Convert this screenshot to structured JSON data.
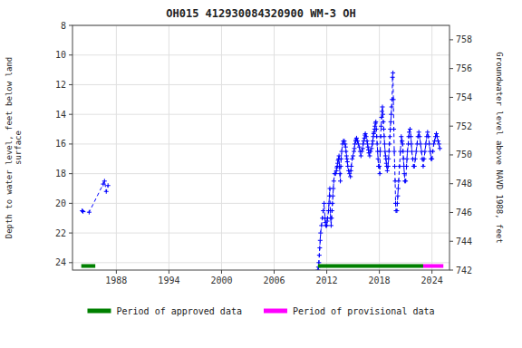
{
  "chart_data": {
    "type": "line",
    "title": "OH015 412930084320900 WM-3 OH",
    "ylabel": "Depth to water level, feet below land\nsurface",
    "y2label": "Groundwater level above NAVD 1988, feet",
    "xlim": [
      1983,
      2026
    ],
    "xticks": [
      1988,
      1994,
      2000,
      2006,
      2012,
      2018,
      2024
    ],
    "ylim": [
      24.5,
      8
    ],
    "yticks": [
      8,
      10,
      12,
      14,
      16,
      18,
      20,
      22,
      24
    ],
    "y2lim": [
      742,
      759
    ],
    "y2ticks": [
      742,
      744,
      746,
      748,
      750,
      752,
      754,
      756,
      758
    ],
    "grid": true,
    "legend": "bottom",
    "bar_y": 24.1,
    "bar_height": 0.25,
    "periods": [
      {
        "name": "Period of approved data",
        "color": "#008000",
        "ranges": [
          [
            1984.0,
            1985.6
          ],
          [
            2011.0,
            2023.0
          ]
        ]
      },
      {
        "name": "Period of provisional data",
        "color": "#ff00ff",
        "ranges": [
          [
            2023.0,
            2025.3
          ]
        ]
      }
    ],
    "series": [
      {
        "color": "#0000ff",
        "marker": "plus",
        "line_style": "dashed",
        "x": [
          1984.1,
          1984.2,
          1984.9,
          1986.5,
          1986.65,
          1986.85,
          1987.05
        ],
        "values": [
          20.5,
          20.55,
          20.6,
          18.7,
          18.5,
          19.2,
          18.8
        ]
      },
      {
        "color": "#0000ff",
        "marker": "plus",
        "line_style": "dashed",
        "x": [
          2011.0,
          2011.05,
          2011.1,
          2011.15,
          2011.2,
          2011.25,
          2011.3,
          2011.4,
          2011.5,
          2011.6,
          2011.7,
          2011.8,
          2011.85,
          2011.9,
          2012.0,
          2012.05,
          2012.1,
          2012.2,
          2012.25,
          2012.3,
          2012.35,
          2012.4,
          2012.45,
          2012.5,
          2012.55,
          2012.6,
          2012.65,
          2012.7,
          2012.75,
          2012.8,
          2012.9,
          2013.0,
          2013.1,
          2013.15,
          2013.2,
          2013.25,
          2013.3,
          2013.35,
          2013.4,
          2013.45,
          2013.5,
          2013.55,
          2013.6,
          2013.65,
          2013.7,
          2013.8,
          2013.9,
          2014.0,
          2014.1,
          2014.15,
          2014.2,
          2014.25,
          2014.3,
          2014.35,
          2014.4,
          2014.5,
          2014.6,
          2014.7,
          2014.75,
          2014.8,
          2014.9,
          2015.0,
          2015.1,
          2015.15,
          2015.2,
          2015.3,
          2015.35,
          2015.4,
          2015.5,
          2015.6,
          2015.7,
          2015.8,
          2015.9,
          2016.0,
          2016.1,
          2016.15,
          2016.2,
          2016.3,
          2016.35,
          2016.4,
          2016.5,
          2016.6,
          2016.65,
          2016.7,
          2016.75,
          2016.8,
          2016.9,
          2017.0,
          2017.1,
          2017.2,
          2017.25,
          2017.3,
          2017.35,
          2017.4,
          2017.45,
          2017.5,
          2017.55,
          2017.6,
          2017.65,
          2017.7,
          2017.75,
          2017.8,
          2017.85,
          2017.9,
          2018.0,
          2018.05,
          2018.1,
          2018.15,
          2018.2,
          2018.25,
          2018.3,
          2018.35,
          2018.4,
          2018.45,
          2018.5,
          2018.55,
          2018.6,
          2018.65,
          2018.7,
          2018.75,
          2018.8,
          2018.85,
          2018.9,
          2019.0,
          2019.05,
          2019.1,
          2019.15,
          2019.2,
          2019.25,
          2019.3,
          2019.35,
          2019.4,
          2019.45,
          2019.5,
          2019.55,
          2019.6,
          2019.65,
          2019.7,
          2019.75,
          2019.8,
          2019.85,
          2019.9,
          2020.0,
          2020.05,
          2020.1,
          2020.15,
          2020.2,
          2020.3,
          2020.4,
          2020.5,
          2020.6,
          2020.65,
          2020.7,
          2020.75,
          2020.8,
          2020.85,
          2020.9,
          2021.0,
          2021.1,
          2021.15,
          2021.2,
          2021.3,
          2021.35,
          2021.4,
          2021.5,
          2021.6,
          2021.65,
          2021.7,
          2021.8,
          2021.9,
          2022.0,
          2022.1,
          2022.2,
          2022.3,
          2022.4,
          2022.5,
          2022.6,
          2022.7,
          2022.8,
          2022.9,
          2023.0,
          2023.1,
          2023.2,
          2023.3,
          2023.4,
          2023.5,
          2023.6,
          2023.7,
          2023.8,
          2023.9,
          2024.0,
          2024.1,
          2024.2,
          2024.3,
          2024.4,
          2024.5,
          2024.6,
          2024.7,
          2024.8,
          2024.9
        ],
        "values": [
          24.5,
          24.3,
          24.0,
          23.5,
          23.0,
          22.5,
          22.0,
          21.5,
          21.0,
          20.5,
          20.0,
          21.0,
          21.3,
          21.5,
          21.5,
          21.2,
          21.0,
          20.5,
          20.0,
          19.5,
          19.0,
          20.5,
          21.0,
          21.5,
          21.0,
          20.5,
          20.0,
          19.5,
          19.0,
          18.5,
          18.0,
          18.0,
          17.8,
          17.6,
          17.5,
          17.3,
          17.1,
          17.0,
          16.8,
          17.5,
          18.0,
          18.5,
          17.5,
          17.0,
          16.5,
          16.0,
          15.8,
          15.8,
          16.0,
          16.2,
          16.5,
          16.8,
          17.0,
          17.2,
          17.5,
          17.8,
          18.0,
          18.2,
          17.8,
          17.5,
          17.0,
          16.8,
          16.5,
          16.3,
          16.0,
          15.8,
          15.7,
          15.6,
          15.8,
          16.0,
          16.2,
          16.5,
          16.8,
          16.5,
          16.3,
          16.0,
          15.8,
          15.6,
          15.4,
          15.3,
          15.5,
          15.8,
          16.0,
          16.2,
          16.4,
          16.6,
          16.8,
          16.5,
          16.3,
          16.0,
          15.8,
          15.5,
          15.3,
          15.2,
          15.0,
          14.8,
          14.6,
          14.5,
          15.0,
          15.5,
          16.0,
          16.5,
          17.0,
          17.5,
          17.5,
          18.0,
          16.5,
          15.5,
          14.8,
          14.2,
          13.8,
          13.5,
          14.0,
          14.5,
          15.0,
          15.5,
          16.0,
          16.5,
          16.8,
          17.0,
          17.3,
          17.5,
          17.8,
          17.5,
          17.0,
          16.5,
          16.0,
          15.5,
          15.0,
          14.5,
          14.0,
          13.5,
          13.0,
          11.5,
          11.2,
          13.0,
          15.0,
          16.5,
          17.5,
          18.5,
          20.0,
          20.5,
          20.5,
          20.0,
          19.5,
          19.0,
          18.5,
          17.5,
          16.5,
          15.5,
          15.8,
          16.0,
          16.5,
          17.0,
          17.5,
          18.0,
          18.5,
          18.5,
          17.5,
          17.0,
          16.5,
          16.0,
          15.5,
          15.2,
          15.0,
          15.5,
          16.0,
          16.5,
          17.0,
          17.5,
          17.5,
          17.0,
          16.5,
          16.0,
          15.5,
          15.2,
          15.5,
          16.0,
          16.5,
          17.0,
          17.5,
          17.0,
          16.5,
          16.0,
          15.5,
          15.2,
          15.5,
          16.0,
          16.5,
          17.0,
          17.0,
          16.5,
          16.0,
          15.8,
          15.5,
          15.3,
          15.5,
          15.8,
          16.0,
          16.3
        ]
      }
    ]
  }
}
